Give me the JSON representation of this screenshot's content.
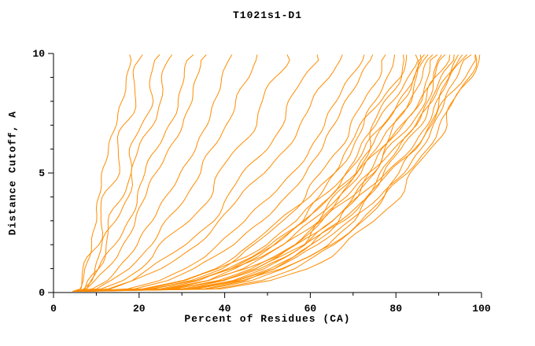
{
  "chart_data": {
    "type": "line",
    "title": "T1021s1-D1",
    "xlabel": "Percent of Residues (CA)",
    "ylabel": "Distance Cutoff, A",
    "xlim": [
      0,
      100
    ],
    "ylim": [
      0,
      10
    ],
    "x_ticks": [
      0,
      20,
      40,
      60,
      80,
      100
    ],
    "x_minor_step": 10,
    "y_ticks": [
      0,
      5,
      10
    ],
    "y_minor_step": 1,
    "grid": false,
    "legend": "none",
    "line_color": "#ff8c00",
    "axis_color": "#000000",
    "y_levels": [
      0.05,
      0.15,
      0.5,
      1,
      1.5,
      2,
      3,
      4,
      5,
      6,
      7,
      8,
      9,
      9.95
    ],
    "series": [
      {
        "x": [
          4.5,
          6.2,
          6.6,
          7.2,
          7.8,
          8.4,
          9.6,
          10.8,
          12.0,
          13.2,
          14.4,
          15.6,
          16.8,
          17.8
        ]
      },
      {
        "x": [
          5.0,
          6.4,
          7.0,
          7.9,
          8.7,
          9.6,
          11.1,
          12.6,
          14.1,
          15.5,
          16.9,
          18.3,
          19.6,
          20.8
        ]
      },
      {
        "x": [
          5.5,
          7.6,
          8.6,
          9.9,
          10.9,
          12.0,
          13.9,
          15.6,
          17.3,
          19.0,
          20.5,
          22.1,
          23.5,
          24.8
        ]
      },
      {
        "x": [
          6.0,
          6.8,
          8.0,
          9.5,
          10.8,
          12.1,
          14.4,
          16.6,
          18.6,
          20.6,
          22.5,
          24.4,
          26.2,
          27.7
        ]
      },
      {
        "x": [
          6.5,
          7.9,
          9.4,
          11.1,
          12.7,
          14.2,
          16.9,
          19.5,
          21.9,
          24.3,
          26.5,
          28.7,
          30.9,
          32.7
        ]
      },
      {
        "x": [
          7.0,
          7.7,
          9.8,
          12.0,
          14.0,
          15.8,
          19.0,
          21.8,
          24.5,
          27.0,
          29.4,
          31.7,
          33.9,
          35.7
        ]
      },
      {
        "x": [
          4.5,
          8.9,
          12.0,
          15.0,
          17.5,
          19.7,
          23.5,
          26.8,
          29.8,
          32.5,
          35.1,
          37.5,
          39.8,
          41.7
        ]
      },
      {
        "x": [
          5.0,
          10.3,
          13.8,
          17.3,
          20.1,
          22.6,
          26.9,
          30.7,
          34.1,
          37.2,
          40.1,
          42.9,
          45.5,
          47.6
        ]
      },
      {
        "x": [
          5.5,
          10.9,
          15.3,
          19.7,
          23.2,
          26.1,
          31.5,
          35.6,
          39.6,
          43.0,
          46.2,
          49.4,
          52.3,
          54.6
        ]
      },
      {
        "x": [
          6.0,
          13.3,
          18.6,
          23.5,
          27.4,
          30.7,
          36.3,
          41.1,
          45.2,
          49.1,
          52.7,
          56.0,
          59.0,
          61.6
        ]
      },
      {
        "x": [
          6.5,
          13.1,
          19.0,
          24.6,
          28.9,
          32.7,
          39.0,
          44.4,
          49.1,
          53.4,
          57.5,
          61.2,
          64.7,
          67.5
        ]
      },
      {
        "x": [
          7.0,
          17.0,
          24.1,
          30.4,
          35.1,
          39.0,
          45.4,
          50.7,
          55.3,
          59.4,
          63.2,
          66.7,
          69.9,
          72.6
        ]
      },
      {
        "x": [
          4.5,
          19.1,
          27.0,
          33.6,
          38.4,
          42.4,
          48.7,
          53.9,
          58.3,
          62.2,
          65.8,
          69.1,
          72.2,
          74.6
        ]
      },
      {
        "x": [
          5.0,
          23.3,
          31.9,
          38.7,
          43.6,
          47.4,
          53.6,
          58.5,
          62.7,
          66.4,
          69.7,
          72.7,
          75.4,
          77.6
        ]
      },
      {
        "x": [
          5.5,
          27.0,
          36.1,
          43.1,
          47.9,
          51.7,
          57.6,
          62.2,
          66.1,
          69.5,
          72.5,
          75.2,
          77.7,
          79.7
        ]
      },
      {
        "x": [
          6.0,
          33.3,
          42.5,
          49.2,
          53.7,
          57.2,
          62.5,
          66.6,
          70.1,
          73.0,
          75.6,
          78.0,
          80.1,
          81.7
        ]
      },
      {
        "x": [
          6.5,
          20.6,
          29.5,
          36.8,
          42.2,
          46.6,
          53.7,
          59.4,
          64.4,
          68.8,
          72.8,
          76.5,
          79.8,
          82.5
        ]
      },
      {
        "x": [
          7.0,
          24.9,
          34.3,
          41.9,
          47.2,
          51.4,
          58.2,
          63.6,
          68.2,
          72.2,
          75.9,
          79.2,
          82.2,
          84.6
        ]
      },
      {
        "x": [
          4.5,
          28.7,
          38.6,
          46.1,
          51.3,
          55.4,
          61.8,
          66.8,
          71.0,
          74.6,
          77.9,
          80.8,
          83.5,
          85.7
        ]
      },
      {
        "x": [
          5.0,
          35.0,
          44.8,
          52.0,
          56.8,
          60.5,
          66.2,
          70.6,
          74.3,
          77.4,
          80.2,
          82.7,
          84.9,
          86.7
        ]
      },
      {
        "x": [
          5.5,
          21.6,
          31.0,
          38.8,
          44.5,
          49.2,
          56.8,
          62.9,
          68.2,
          72.8,
          77.1,
          81.0,
          84.6,
          87.5
        ]
      },
      {
        "x": [
          6.0,
          25.9,
          35.7,
          43.7,
          49.2,
          53.7,
          60.8,
          66.5,
          71.4,
          75.6,
          79.4,
          82.9,
          86.0,
          88.6
        ]
      },
      {
        "x": [
          6.5,
          29.9,
          40.2,
          48.1,
          53.5,
          57.8,
          64.6,
          69.8,
          74.2,
          78.1,
          81.5,
          84.5,
          87.4,
          89.7
        ]
      },
      {
        "x": [
          7.0,
          36.4,
          46.7,
          54.2,
          59.2,
          63.2,
          69.2,
          73.8,
          77.6,
          80.9,
          83.9,
          86.5,
          88.8,
          90.7
        ]
      },
      {
        "x": [
          4.5,
          22.3,
          32.2,
          40.4,
          46.4,
          51.3,
          59.2,
          65.7,
          71.2,
          76.1,
          80.6,
          84.7,
          88.5,
          91.5
        ]
      },
      {
        "x": [
          5.0,
          26.8,
          37.1,
          45.4,
          51.3,
          55.9,
          63.4,
          69.4,
          74.5,
          78.9,
          82.9,
          86.6,
          89.9,
          92.6
        ]
      },
      {
        "x": [
          5.5,
          31.0,
          41.8,
          50.1,
          55.8,
          60.3,
          67.3,
          72.9,
          77.5,
          81.5,
          85.1,
          88.3,
          91.3,
          93.6
        ]
      },
      {
        "x": [
          6.0,
          37.8,
          48.6,
          56.5,
          61.7,
          65.9,
          72.1,
          77.0,
          81.0,
          84.4,
          87.5,
          90.2,
          92.7,
          94.6
        ]
      },
      {
        "x": [
          6.5,
          23.1,
          33.5,
          42.0,
          48.3,
          53.4,
          61.7,
          68.5,
          74.2,
          79.4,
          84.0,
          88.4,
          92.3,
          95.5
        ]
      },
      {
        "x": [
          7.0,
          27.7,
          38.5,
          47.2,
          53.4,
          58.2,
          66.0,
          72.3,
          77.7,
          82.2,
          86.5,
          90.3,
          93.8,
          96.6
        ]
      },
      {
        "x": [
          4.5,
          32.1,
          43.4,
          52.1,
          58.1,
          62.8,
          70.1,
          75.9,
          80.7,
          84.9,
          88.7,
          92.0,
          95.1,
          97.6
        ]
      },
      {
        "x": [
          5.0,
          39.2,
          50.5,
          58.7,
          64.2,
          68.5,
          75.1,
          80.1,
          84.4,
          88.0,
          91.2,
          94.0,
          96.6,
          98.6
        ]
      },
      {
        "x": [
          5.5,
          27.4,
          38.6,
          47.6,
          53.9,
          58.9,
          67.0,
          73.5,
          79.0,
          83.7,
          88.1,
          92.0,
          95.7,
          98.5
        ]
      },
      {
        "x": [
          6.0,
          33.4,
          44.9,
          53.6,
          59.6,
          64.4,
          71.8,
          77.7,
          82.5,
          86.8,
          90.6,
          93.9,
          97.1,
          99.6
        ]
      }
    ]
  }
}
